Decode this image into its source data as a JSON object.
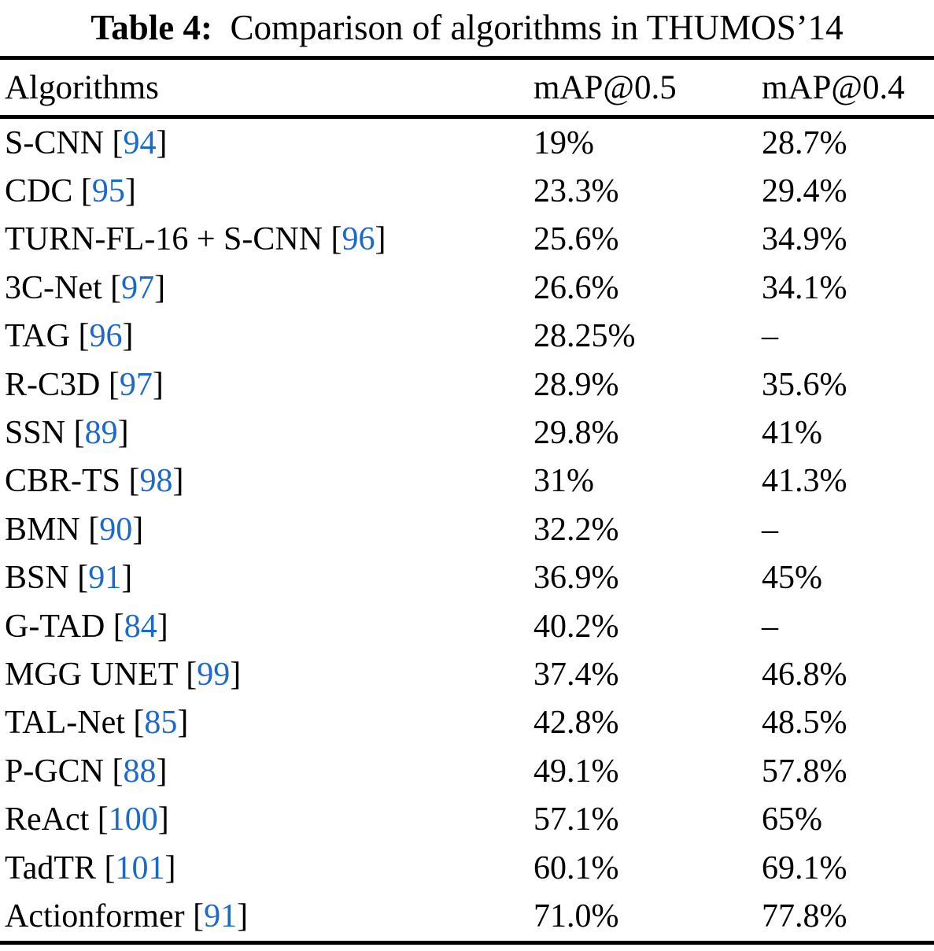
{
  "caption": {
    "label": "Table 4:",
    "text": "  Comparison of algorithms in THUMOS’14"
  },
  "table": {
    "columns": [
      "Algorithms",
      "mAP@0.5",
      "mAP@0.4"
    ],
    "rows": [
      {
        "algorithm": "S-CNN",
        "citation": "94",
        "map_05": "19%",
        "map_04": "28.7%"
      },
      {
        "algorithm": "CDC",
        "citation": "95",
        "map_05": "23.3%",
        "map_04": "29.4%"
      },
      {
        "algorithm": "TURN-FL-16 + S-CNN",
        "citation": "96",
        "map_05": "25.6%",
        "map_04": "34.9%"
      },
      {
        "algorithm": "3C-Net",
        "citation": "97",
        "map_05": "26.6%",
        "map_04": "34.1%"
      },
      {
        "algorithm": "TAG",
        "citation": "96",
        "map_05": "28.25%",
        "map_04": "–"
      },
      {
        "algorithm": "R-C3D",
        "citation": "97",
        "map_05": "28.9%",
        "map_04": "35.6%"
      },
      {
        "algorithm": "SSN",
        "citation": "89",
        "map_05": "29.8%",
        "map_04": "41%"
      },
      {
        "algorithm": "CBR-TS",
        "citation": "98",
        "map_05": "31%",
        "map_04": "41.3%"
      },
      {
        "algorithm": "BMN",
        "citation": "90",
        "map_05": "32.2%",
        "map_04": "–"
      },
      {
        "algorithm": "BSN",
        "citation": "91",
        "map_05": "36.9%",
        "map_04": "45%"
      },
      {
        "algorithm": "G-TAD",
        "citation": "84",
        "map_05": "40.2%",
        "map_04": "–"
      },
      {
        "algorithm": "MGG UNET",
        "citation": "99",
        "map_05": "37.4%",
        "map_04": "46.8%"
      },
      {
        "algorithm": "TAL-Net",
        "citation": "85",
        "map_05": "42.8%",
        "map_04": "48.5%"
      },
      {
        "algorithm": "P-GCN",
        "citation": "88",
        "map_05": "49.1%",
        "map_04": "57.8%"
      },
      {
        "algorithm": "ReAct",
        "citation": "100",
        "map_05": "57.1%",
        "map_04": "65%"
      },
      {
        "algorithm": "TadTR",
        "citation": "101",
        "map_05": "60.1%",
        "map_04": "69.1%"
      },
      {
        "algorithm": "Actionformer",
        "citation": "91",
        "map_05": "71.0%",
        "map_04": "77.8%"
      }
    ]
  },
  "colors": {
    "citation_blue": "#1b6acb",
    "text": "#000000",
    "rule": "#000000",
    "background": "#ffffff"
  }
}
